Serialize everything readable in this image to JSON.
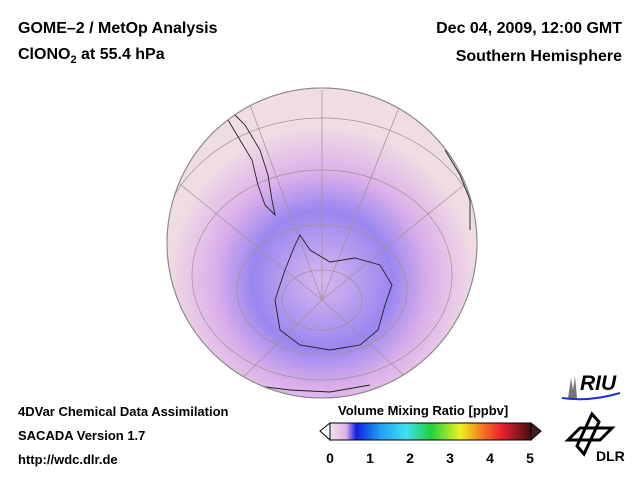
{
  "header": {
    "title_line1": "GOME–2 / MetOp Analysis",
    "species": "ClONO",
    "species_sub": "2",
    "species_suffix": " at 55.4 hPa",
    "date": "Dec 04, 2009, 12:00 GMT",
    "hemisphere": "Southern Hemisphere"
  },
  "footer": {
    "line1": "4DVar Chemical Data Assimilation",
    "line2": "SACADA Version 1.7",
    "line3": "http://wdc.dlr.de"
  },
  "colorbar": {
    "title": "Volume Mixing Ratio [ppbv]",
    "ticks": [
      "0",
      "1",
      "2",
      "3",
      "4",
      "5"
    ],
    "range": [
      0,
      5
    ],
    "colors": [
      "#f0e4ea",
      "#e8b8e8",
      "#1020e0",
      "#20a0f0",
      "#40e0f0",
      "#20d040",
      "#f0f020",
      "#f08020",
      "#f02030",
      "#801020",
      "#401010"
    ]
  },
  "logos": {
    "riu": "RIU",
    "dlr": "DLR"
  }
}
